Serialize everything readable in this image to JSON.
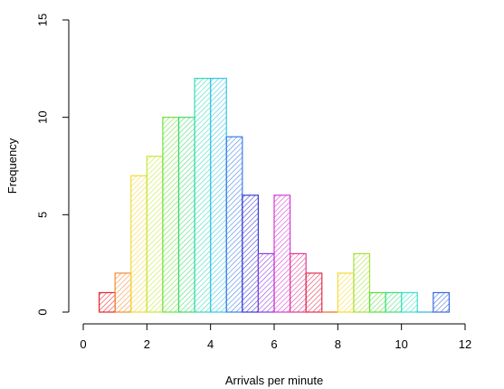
{
  "chart_data": {
    "type": "bar",
    "title": "",
    "xlabel": "Arrivals per minute",
    "ylabel": "Frequency",
    "xlim": [
      0,
      12
    ],
    "ylim": [
      0,
      15
    ],
    "x_ticks": [
      "0",
      "2",
      "4",
      "6",
      "8",
      "10",
      "12"
    ],
    "y_ticks": [
      "0",
      "5",
      "10",
      "15"
    ],
    "bin_width": 0.5,
    "bins": [
      {
        "x0": 0.5,
        "x1": 1.0,
        "value": 1,
        "color": "#E6262E"
      },
      {
        "x0": 1.0,
        "x1": 1.5,
        "value": 2,
        "color": "#F28C33"
      },
      {
        "x0": 1.5,
        "x1": 2.0,
        "value": 7,
        "color": "#F5D83A"
      },
      {
        "x0": 2.0,
        "x1": 2.5,
        "value": 8,
        "color": "#C4E83A"
      },
      {
        "x0": 2.5,
        "x1": 3.0,
        "value": 10,
        "color": "#6EE23C"
      },
      {
        "x0": 3.0,
        "x1": 3.5,
        "value": 10,
        "color": "#3DDB6B"
      },
      {
        "x0": 3.5,
        "x1": 4.0,
        "value": 12,
        "color": "#35D9B4"
      },
      {
        "x0": 4.0,
        "x1": 4.5,
        "value": 12,
        "color": "#35C6E6"
      },
      {
        "x0": 4.5,
        "x1": 5.0,
        "value": 9,
        "color": "#3A7DE6"
      },
      {
        "x0": 5.0,
        "x1": 5.5,
        "value": 6,
        "color": "#3A3AD6"
      },
      {
        "x0": 5.5,
        "x1": 6.0,
        "value": 3,
        "color": "#8A3AE0"
      },
      {
        "x0": 6.0,
        "x1": 6.5,
        "value": 6,
        "color": "#D63AD6"
      },
      {
        "x0": 6.5,
        "x1": 7.0,
        "value": 3,
        "color": "#E03A96"
      },
      {
        "x0": 7.0,
        "x1": 7.5,
        "value": 2,
        "color": "#E02E4E"
      },
      {
        "x0": 7.5,
        "x1": 8.0,
        "value": 0,
        "color": "#E8702E"
      },
      {
        "x0": 8.0,
        "x1": 8.5,
        "value": 2,
        "color": "#F5DA3A"
      },
      {
        "x0": 8.5,
        "x1": 9.0,
        "value": 3,
        "color": "#A8E03A"
      },
      {
        "x0": 9.0,
        "x1": 9.5,
        "value": 1,
        "color": "#5AE03A"
      },
      {
        "x0": 9.5,
        "x1": 10.0,
        "value": 1,
        "color": "#3AE07A"
      },
      {
        "x0": 10.0,
        "x1": 10.5,
        "value": 1,
        "color": "#3AE0C8"
      },
      {
        "x0": 10.5,
        "x1": 11.0,
        "value": 0,
        "color": "#3AB4E6"
      },
      {
        "x0": 11.0,
        "x1": 11.5,
        "value": 1,
        "color": "#3A6AE0"
      }
    ]
  }
}
